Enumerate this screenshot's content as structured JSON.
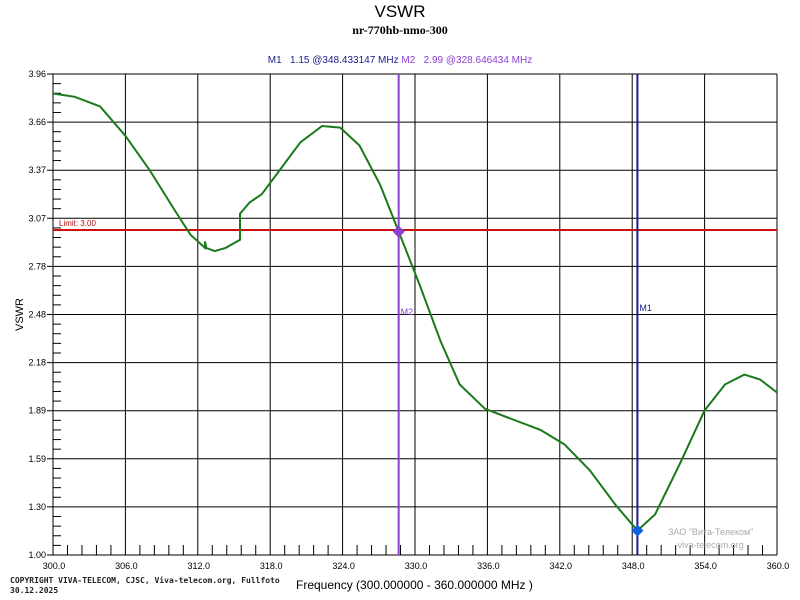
{
  "chart_data": {
    "type": "line",
    "title": "VSWR",
    "subtitle": "nr-770hb-nmo-300",
    "xlabel": "Frequency (300.000000 - 360.000000 MHz )",
    "ylabel": "VSWR",
    "xlim": [
      300,
      360
    ],
    "ylim": [
      1.0,
      3.96
    ],
    "grid": true,
    "xticks": [
      "300.0",
      "306.0",
      "312.0",
      "318.0",
      "324.0",
      "330.0",
      "336.0",
      "342.0",
      "348.0",
      "354.0",
      "360.0"
    ],
    "yticks": [
      "1.00",
      "1.30",
      "1.59",
      "1.89",
      "2.18",
      "2.48",
      "2.78",
      "3.07",
      "3.37",
      "3.66",
      "3.96"
    ],
    "limit": {
      "value": 3.0,
      "label": "Limit: 3.00",
      "color": "#d01010"
    },
    "series": [
      {
        "name": "VSWR",
        "color": "#1a7a1a",
        "x": [
          300,
          301.8,
          303.9,
          306,
          308,
          310.1,
          311.4,
          312.6,
          312.6,
          312.7,
          313.4,
          314.3,
          315.5,
          315.5,
          316.3,
          317.3,
          318.8,
          320.5,
          322.3,
          323.8,
          325.4,
          327.1,
          328.65,
          330.4,
          332.1,
          333.7,
          335.8,
          337.9,
          340.4,
          342.4,
          344.5,
          346.6,
          348.43,
          349.9,
          352,
          354,
          355.7,
          357.3,
          358.6,
          360
        ],
        "y": [
          3.84,
          3.82,
          3.76,
          3.58,
          3.37,
          3.12,
          2.97,
          2.89,
          2.93,
          2.89,
          2.87,
          2.89,
          2.94,
          3.1,
          3.17,
          3.22,
          3.37,
          3.54,
          3.64,
          3.63,
          3.52,
          3.28,
          2.99,
          2.66,
          2.32,
          2.05,
          1.9,
          1.84,
          1.77,
          1.68,
          1.52,
          1.31,
          1.15,
          1.25,
          1.57,
          1.89,
          2.05,
          2.11,
          2.08,
          2.0
        ]
      }
    ],
    "markers": [
      {
        "name": "M1",
        "value": "1.15",
        "freq_text": "@348.433147 MHz",
        "x": 348.433147,
        "y": 1.15,
        "color": "#1a1a8c"
      },
      {
        "name": "M2",
        "value": "2.99",
        "freq_text": "@328.646434 MHz",
        "x": 328.646434,
        "y": 2.99,
        "color": "#8a3fd1"
      }
    ]
  },
  "copyright": [
    "COPYRIGHT VIVA-TELECOM, CJSC, Viva-telecom.org, Fullfoto",
    "30.12.2025"
  ],
  "watermark": [
    "ЗАО \"Вита-Телеком\"",
    "viva-telecom.org"
  ]
}
